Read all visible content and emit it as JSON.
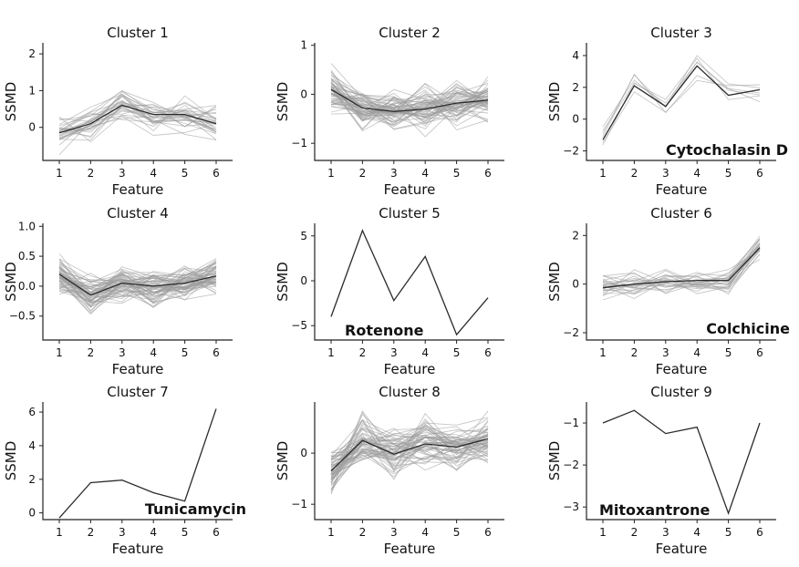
{
  "chart_data": [
    {
      "type": "line",
      "title": "Cluster 1",
      "xlabel": "Feature",
      "ylabel": "SSMD",
      "x": [
        1,
        2,
        3,
        4,
        5,
        6
      ],
      "ylim": [
        -0.9,
        2.3
      ],
      "yticks": [
        0,
        1,
        2
      ],
      "annotation": "",
      "background_count": 30,
      "background_spread": 0.3,
      "series": [
        {
          "values": [
            -0.15,
            0.1,
            0.6,
            0.35,
            0.35,
            0.1
          ]
        }
      ]
    },
    {
      "type": "line",
      "title": "Cluster 2",
      "xlabel": "Feature",
      "ylabel": "SSMD",
      "x": [
        1,
        2,
        3,
        4,
        5,
        6
      ],
      "ylim": [
        -1.35,
        1.05
      ],
      "yticks": [
        -1,
        0,
        1
      ],
      "annotation": "",
      "background_count": 60,
      "background_spread": 0.28,
      "series": [
        {
          "values": [
            0.1,
            -0.28,
            -0.35,
            -0.3,
            -0.18,
            -0.12
          ]
        }
      ]
    },
    {
      "type": "line",
      "title": "Cluster 3",
      "xlabel": "Feature",
      "ylabel": "SSMD",
      "x": [
        1,
        2,
        3,
        4,
        5,
        6
      ],
      "ylim": [
        -2.6,
        4.8
      ],
      "yticks": [
        -2,
        0,
        2,
        4
      ],
      "annotation": "Cytochalasin D",
      "background_count": 6,
      "background_spread": 0.7,
      "series": [
        {
          "values": [
            -1.3,
            2.1,
            0.8,
            3.35,
            1.5,
            1.85
          ]
        }
      ]
    },
    {
      "type": "line",
      "title": "Cluster 4",
      "xlabel": "Feature",
      "ylabel": "SSMD",
      "x": [
        1,
        2,
        3,
        4,
        5,
        6
      ],
      "ylim": [
        -0.9,
        1.05
      ],
      "yticks": [
        -0.5,
        0.0,
        0.5,
        1.0
      ],
      "annotation": "",
      "background_count": 60,
      "background_spread": 0.2,
      "series": [
        {
          "values": [
            0.2,
            -0.15,
            0.05,
            0.0,
            0.05,
            0.17
          ]
        }
      ]
    },
    {
      "type": "line",
      "title": "Cluster 5",
      "xlabel": "Feature",
      "ylabel": "SSMD",
      "x": [
        1,
        2,
        3,
        4,
        5,
        6
      ],
      "ylim": [
        -6.6,
        6.4
      ],
      "yticks": [
        -5,
        0,
        5
      ],
      "annotation": "Rotenone",
      "background_count": 0,
      "background_spread": 0,
      "series": [
        {
          "values": [
            -4.0,
            5.6,
            -2.2,
            2.7,
            -6.0,
            -1.9
          ]
        }
      ]
    },
    {
      "type": "line",
      "title": "Cluster 6",
      "xlabel": "Feature",
      "ylabel": "SSMD",
      "x": [
        1,
        2,
        3,
        4,
        5,
        6
      ],
      "ylim": [
        -2.3,
        2.5
      ],
      "yticks": [
        -2,
        0,
        2
      ],
      "annotation": "Colchicine",
      "background_count": 25,
      "background_spread": 0.35,
      "series": [
        {
          "values": [
            -0.15,
            0.0,
            0.1,
            0.15,
            0.15,
            1.5
          ]
        }
      ]
    },
    {
      "type": "line",
      "title": "Cluster 7",
      "xlabel": "Feature",
      "ylabel": "SSMD",
      "x": [
        1,
        2,
        3,
        4,
        5,
        6
      ],
      "ylim": [
        -0.4,
        6.6
      ],
      "yticks": [
        0,
        2,
        4,
        6
      ],
      "annotation": "Tunicamycin",
      "background_count": 0,
      "background_spread": 0,
      "series": [
        {
          "values": [
            -0.3,
            1.8,
            1.95,
            1.2,
            0.7,
            6.2
          ]
        }
      ]
    },
    {
      "type": "line",
      "title": "Cluster 8",
      "xlabel": "Feature",
      "ylabel": "SSMD",
      "x": [
        1,
        2,
        3,
        4,
        5,
        6
      ],
      "ylim": [
        -1.3,
        1.0
      ],
      "yticks": [
        -1,
        0
      ],
      "annotation": "",
      "background_count": 60,
      "background_spread": 0.3,
      "series": [
        {
          "values": [
            -0.35,
            0.25,
            -0.02,
            0.18,
            0.12,
            0.28
          ]
        }
      ]
    },
    {
      "type": "line",
      "title": "Cluster 9",
      "xlabel": "Feature",
      "ylabel": "SSMD",
      "x": [
        1,
        2,
        3,
        4,
        5,
        6
      ],
      "ylim": [
        -3.3,
        -0.5
      ],
      "yticks": [
        -3,
        -2,
        -1
      ],
      "annotation": "Mitoxantrone",
      "background_count": 0,
      "background_spread": 0,
      "series": [
        {
          "values": [
            -1.0,
            -0.7,
            -1.25,
            -1.1,
            -3.15,
            -1.0
          ]
        }
      ]
    }
  ]
}
